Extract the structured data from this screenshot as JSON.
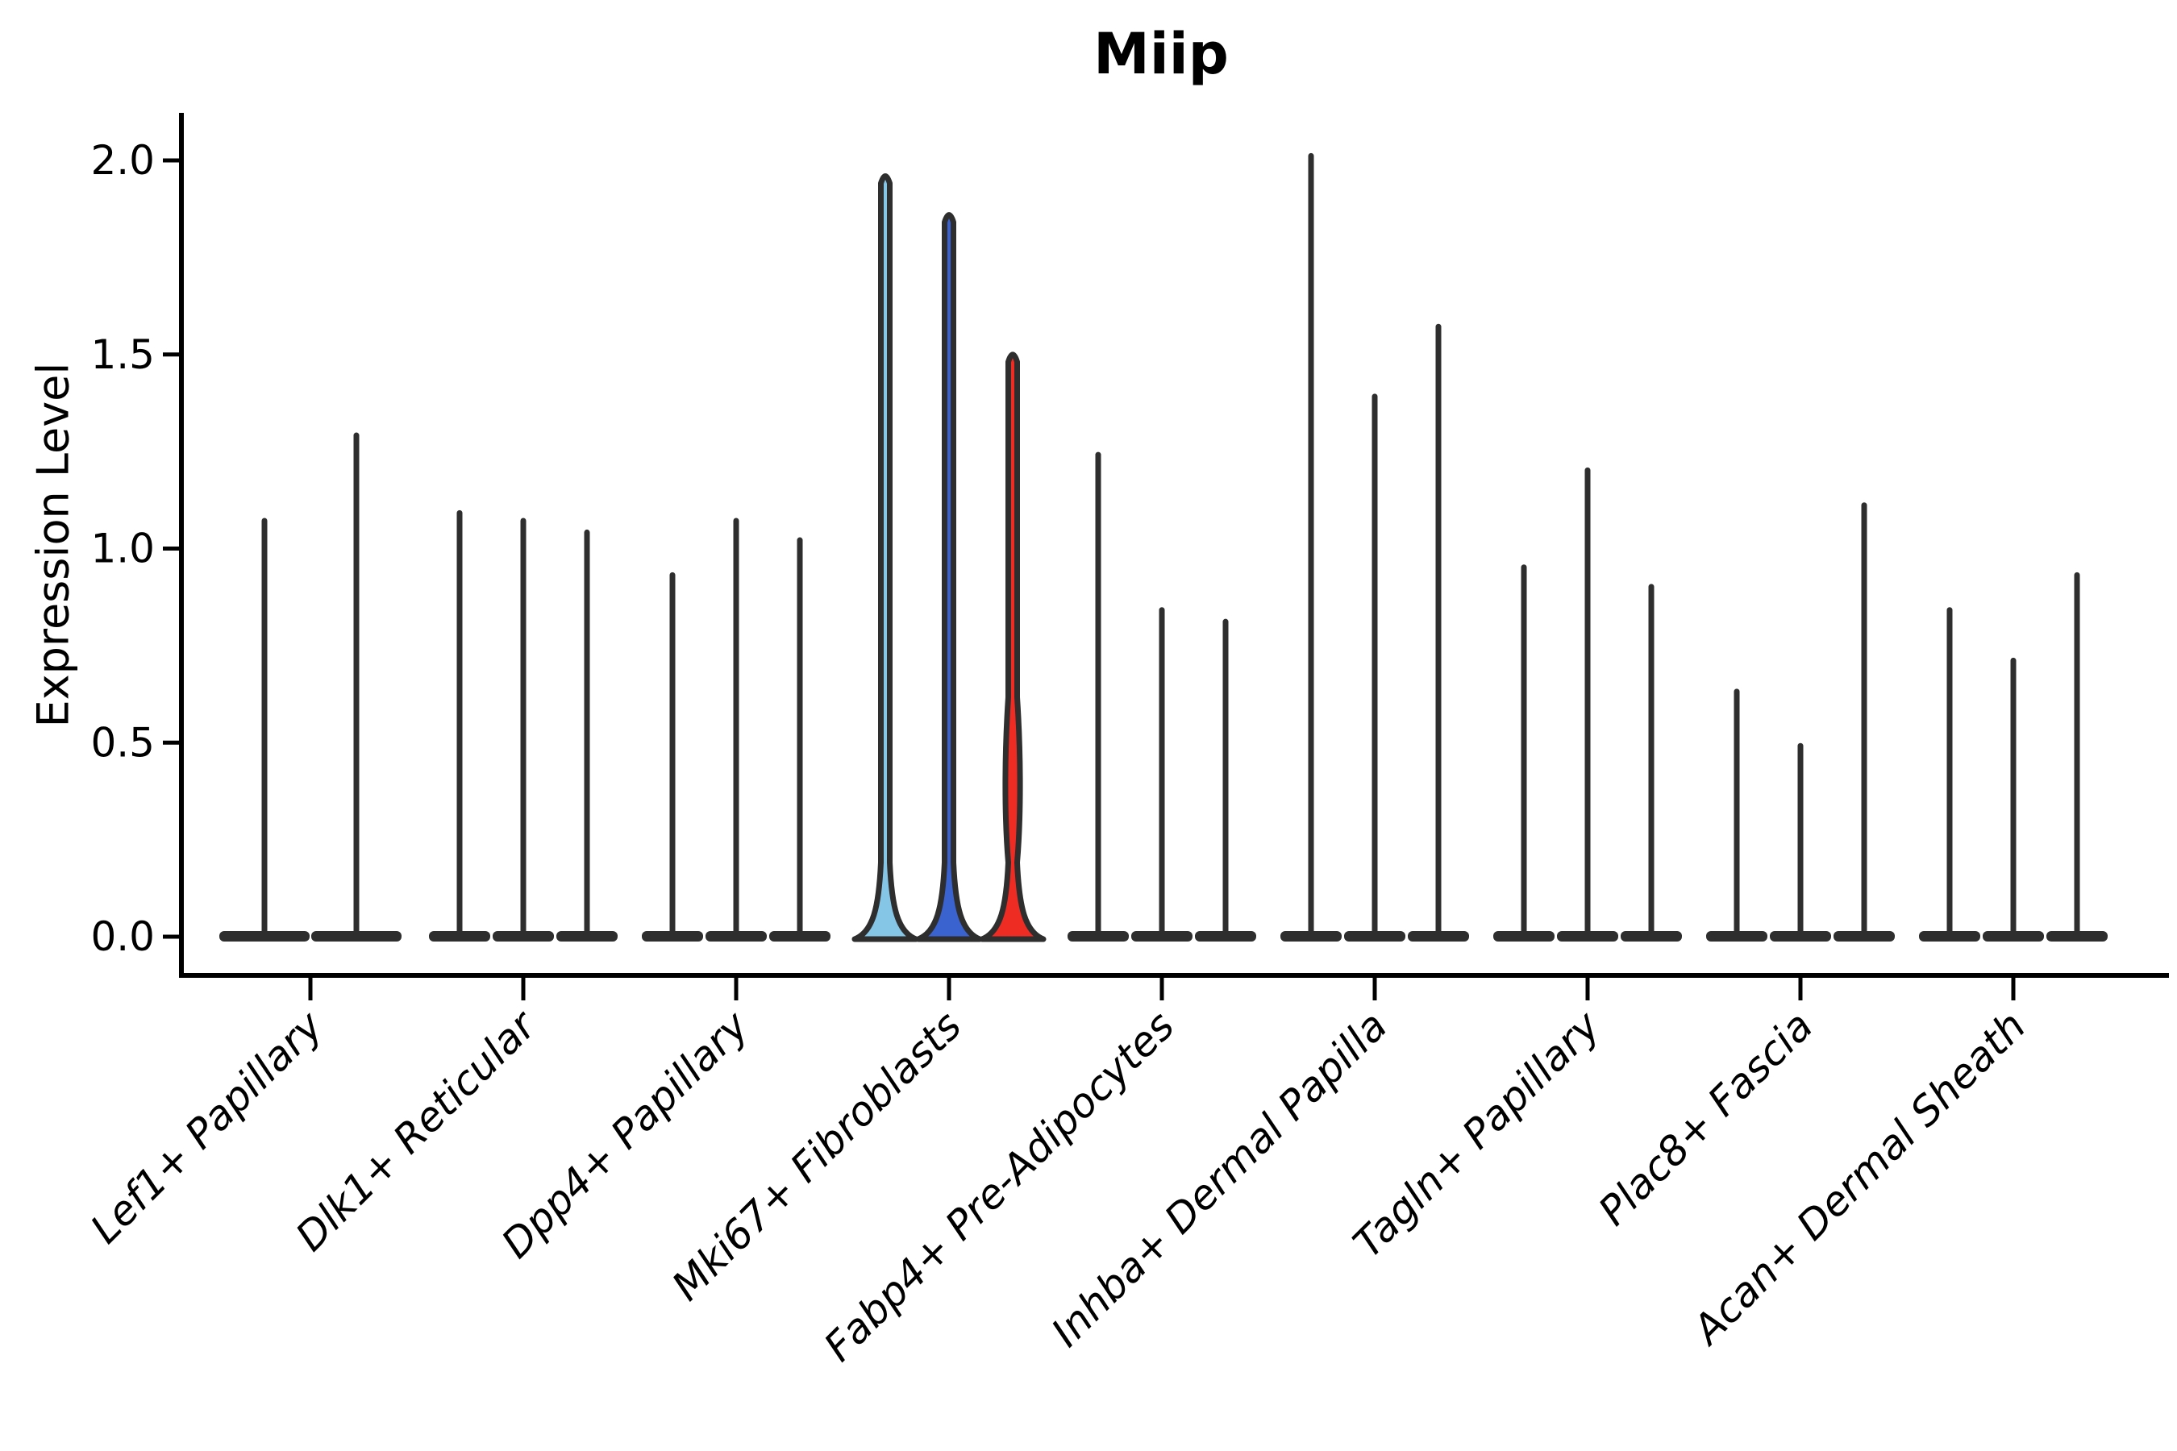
{
  "title": "Miip",
  "y_axis": {
    "label": "Expression Level",
    "ticks": [
      "0.0",
      "0.5",
      "1.0",
      "1.5",
      "2.0"
    ],
    "tick_values": [
      0.0,
      0.5,
      1.0,
      1.5,
      2.0
    ]
  },
  "x_axis": {
    "categories": [
      "Lef1+ Papillary",
      "Dlk1+ Reticular",
      "Dpp4+ Papillary",
      "Mki67+ Fibroblasts",
      "Fabp4+ Pre-Adipocytes",
      "Inhba+ Dermal Papilla",
      "Tagln+ Papillary",
      "Plac8+ Fascia",
      "Acan+ Dermal Sheath"
    ]
  },
  "palette": {
    "background": "#FFFFFF",
    "axis_color": "#000000",
    "violin_line": "#2E2E2E",
    "highlight_fills": [
      "#85C5E6",
      "#3B63D0",
      "#EF2C24"
    ]
  },
  "chart_data": {
    "type": "violin",
    "title": "Miip",
    "xlabel": "",
    "ylabel": "Expression Level",
    "ylim": [
      0,
      2.05
    ],
    "y_ticks": [
      0.0,
      0.5,
      1.0,
      1.5,
      2.0
    ],
    "grid": false,
    "legend_position": "none",
    "categories": [
      "Lef1+ Papillary",
      "Dlk1+ Reticular",
      "Dpp4+ Papillary",
      "Mki67+ Fibroblasts",
      "Fabp4+ Pre-Adipocytes",
      "Inhba+ Dermal Papilla",
      "Tagln+ Papillary",
      "Plac8+ Fascia",
      "Acan+ Dermal Sheath"
    ],
    "description": "Violin plot of Miip expression; all distributions are concentrated at 0 with thin spikes of rare expressing cells. The Mki67+ Fibroblasts category is highlighted with three colored violins.",
    "groups": [
      {
        "category": "Lef1+ Papillary",
        "violins": [
          {
            "max_expression": 1.08
          },
          {
            "max_expression": 1.3
          }
        ]
      },
      {
        "category": "Dlk1+ Reticular",
        "violins": [
          {
            "max_expression": 1.1
          },
          {
            "max_expression": 1.08
          },
          {
            "max_expression": 1.05
          }
        ]
      },
      {
        "category": "Dpp4+ Papillary",
        "violins": [
          {
            "max_expression": 0.94
          },
          {
            "max_expression": 1.08
          },
          {
            "max_expression": 1.03
          }
        ]
      },
      {
        "category": "Mki67+ Fibroblasts",
        "violins": [
          {
            "max_expression": 1.97,
            "fill": "#85C5E6"
          },
          {
            "max_expression": 1.87,
            "fill": "#3B63D0"
          },
          {
            "max_expression": 1.51,
            "fill": "#EF2C24",
            "bulge": [
              0.22,
              0.6
            ]
          }
        ]
      },
      {
        "category": "Fabp4+ Pre-Adipocytes",
        "violins": [
          {
            "max_expression": 1.25
          },
          {
            "max_expression": 0.85
          },
          {
            "max_expression": 0.82
          }
        ]
      },
      {
        "category": "Inhba+ Dermal Papilla",
        "violins": [
          {
            "max_expression": 2.02
          },
          {
            "max_expression": 1.4
          },
          {
            "max_expression": 1.58
          }
        ]
      },
      {
        "category": "Tagln+ Papillary",
        "violins": [
          {
            "max_expression": 0.96
          },
          {
            "max_expression": 1.21
          },
          {
            "max_expression": 0.91
          }
        ]
      },
      {
        "category": "Plac8+ Fascia",
        "violins": [
          {
            "max_expression": 0.64
          },
          {
            "max_expression": 0.5
          },
          {
            "max_expression": 1.12
          }
        ]
      },
      {
        "category": "Acan+ Dermal Sheath",
        "violins": [
          {
            "max_expression": 0.85
          },
          {
            "max_expression": 0.72
          },
          {
            "max_expression": 0.94
          }
        ]
      }
    ]
  }
}
